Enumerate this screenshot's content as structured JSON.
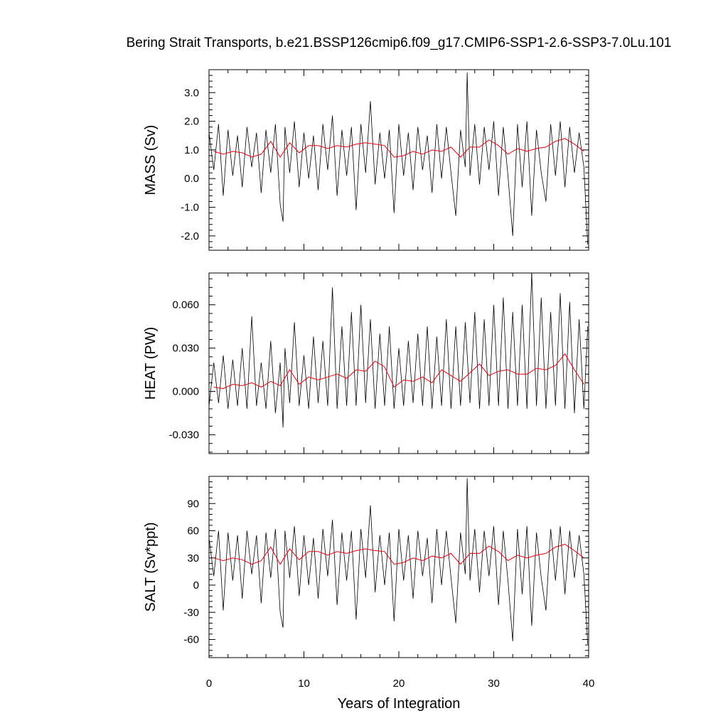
{
  "chart_data": {
    "type": "line",
    "title": "Bering Strait Transports, b.e21.BSSP126cmip6.f09_g17.CMIP6-SSP1-2.6-SSP3-7.0Lu.101",
    "xlabel": "Years of Integration",
    "xlim": [
      0,
      40
    ],
    "xticks": [
      0,
      10,
      20,
      30,
      40
    ],
    "xtick_labels": [
      "0",
      "10",
      "20",
      "30",
      "40"
    ],
    "grid": false,
    "legend": "none",
    "colors": {
      "monthly": "#000000",
      "annual": "#e8000b"
    },
    "panels": [
      {
        "id": "mass",
        "ylabel": "MASS (Sv)",
        "ylim": [
          -2.5,
          3.8
        ],
        "yticks": [
          -2.0,
          -1.0,
          0.0,
          1.0,
          2.0,
          3.0
        ],
        "ytick_labels": [
          "-2.0",
          "-1.0",
          "0.0",
          "1.0",
          "2.0",
          "3.0"
        ],
        "series": [
          {
            "kind": "monthly",
            "x": [
              0.0,
              0.5,
              1.0,
              1.5,
              2.0,
              2.5,
              3.0,
              3.5,
              4.0,
              4.5,
              5.0,
              5.5,
              6.0,
              6.5,
              7.0,
              7.5,
              7.8,
              8.0,
              8.5,
              9.0,
              9.5,
              10.0,
              10.5,
              11.0,
              11.5,
              12.0,
              12.5,
              13.0,
              13.5,
              14.0,
              14.5,
              15.0,
              15.5,
              16.0,
              16.5,
              17.0,
              17.5,
              18.0,
              18.5,
              19.0,
              19.5,
              20.0,
              20.5,
              21.0,
              21.5,
              22.0,
              22.5,
              23.0,
              23.5,
              24.0,
              24.5,
              25.0,
              25.5,
              26.0,
              26.5,
              27.0,
              27.2,
              27.5,
              28.0,
              28.5,
              29.0,
              29.5,
              30.0,
              30.5,
              31.0,
              31.5,
              32.0,
              32.5,
              33.0,
              33.5,
              34.0,
              34.5,
              35.0,
              35.5,
              36.0,
              36.5,
              37.0,
              37.5,
              38.0,
              38.5,
              39.0,
              39.5,
              39.9
            ],
            "y": [
              1.6,
              0.3,
              1.9,
              -0.6,
              1.7,
              0.1,
              1.5,
              -0.3,
              1.8,
              0.4,
              1.6,
              -0.5,
              1.7,
              0.2,
              1.9,
              -0.9,
              -1.5,
              1.8,
              0.2,
              2.0,
              -0.3,
              1.6,
              0.0,
              1.5,
              -0.4,
              1.9,
              0.3,
              2.2,
              -0.6,
              1.7,
              0.1,
              1.8,
              -1.1,
              1.9,
              0.2,
              2.7,
              -0.2,
              1.6,
              0.0,
              1.7,
              -1.2,
              1.9,
              0.1,
              1.6,
              -0.4,
              1.8,
              0.3,
              1.5,
              -0.5,
              1.9,
              0.0,
              1.8,
              0.2,
              -1.3,
              1.7,
              0.4,
              3.7,
              0.1,
              1.9,
              -0.2,
              1.8,
              0.3,
              2.0,
              -0.6,
              1.8,
              0.1,
              -2.0,
              1.9,
              -0.3,
              2.0,
              -1.3,
              1.7,
              0.2,
              -0.8,
              1.9,
              0.1,
              2.0,
              -0.3,
              1.8,
              0.2,
              1.6,
              0.4,
              -2.3
            ]
          },
          {
            "kind": "annual",
            "x": [
              0.5,
              1.5,
              2.5,
              3.5,
              4.5,
              5.5,
              6.5,
              7.5,
              8.5,
              9.5,
              10.5,
              11.5,
              12.5,
              13.5,
              14.5,
              15.5,
              16.5,
              17.5,
              18.5,
              19.5,
              20.5,
              21.5,
              22.5,
              23.5,
              24.5,
              25.5,
              26.5,
              27.5,
              28.5,
              29.5,
              30.5,
              31.5,
              32.5,
              33.5,
              34.5,
              35.5,
              36.5,
              37.5,
              38.5,
              39.5
            ],
            "y": [
              0.95,
              0.85,
              0.95,
              0.9,
              0.75,
              0.85,
              1.3,
              0.75,
              1.25,
              0.9,
              1.15,
              1.15,
              1.05,
              1.15,
              1.1,
              1.2,
              1.25,
              1.2,
              1.15,
              0.75,
              0.8,
              0.95,
              0.85,
              1.0,
              0.95,
              1.1,
              0.75,
              1.1,
              1.1,
              1.35,
              1.15,
              0.85,
              1.05,
              0.95,
              1.05,
              1.1,
              1.3,
              1.4,
              1.2,
              0.95
            ]
          }
        ]
      },
      {
        "id": "heat",
        "ylabel": "HEAT (PW)",
        "ylim": [
          -0.043,
          0.082
        ],
        "yticks": [
          -0.03,
          0.0,
          0.03,
          0.06
        ],
        "ytick_labels": [
          "-0.030",
          "0.000",
          "0.030",
          "0.060"
        ],
        "series": [
          {
            "kind": "monthly",
            "x": [
              0.0,
              0.5,
              1.0,
              1.5,
              2.0,
              2.5,
              3.0,
              3.5,
              4.0,
              4.5,
              5.0,
              5.5,
              6.0,
              6.5,
              7.0,
              7.5,
              7.8,
              8.0,
              8.5,
              9.0,
              9.5,
              10.0,
              10.5,
              11.0,
              11.5,
              12.0,
              12.5,
              13.0,
              13.5,
              14.0,
              14.5,
              15.0,
              15.5,
              16.0,
              16.5,
              17.0,
              17.5,
              18.0,
              18.5,
              19.0,
              19.5,
              20.0,
              20.5,
              21.0,
              21.5,
              22.0,
              22.5,
              23.0,
              23.5,
              24.0,
              24.5,
              25.0,
              25.5,
              26.0,
              26.5,
              27.0,
              27.5,
              28.0,
              28.5,
              29.0,
              29.5,
              30.0,
              30.5,
              31.0,
              31.5,
              32.0,
              32.5,
              33.0,
              33.5,
              34.0,
              34.5,
              35.0,
              35.5,
              36.0,
              36.5,
              37.0,
              37.5,
              38.0,
              38.5,
              39.0,
              39.5,
              39.9
            ],
            "y": [
              -0.01,
              0.02,
              -0.008,
              0.025,
              -0.012,
              0.022,
              -0.01,
              0.03,
              -0.012,
              0.052,
              -0.01,
              0.02,
              -0.012,
              0.035,
              -0.015,
              0.02,
              -0.025,
              0.03,
              -0.008,
              0.048,
              -0.01,
              0.025,
              -0.012,
              0.038,
              -0.008,
              0.035,
              -0.01,
              0.072,
              -0.012,
              0.045,
              -0.01,
              0.055,
              -0.01,
              0.06,
              -0.008,
              0.05,
              -0.012,
              0.04,
              -0.01,
              0.045,
              -0.012,
              0.03,
              -0.01,
              0.035,
              -0.008,
              0.04,
              -0.01,
              0.045,
              -0.012,
              0.038,
              -0.01,
              0.05,
              -0.012,
              0.045,
              -0.01,
              0.048,
              -0.008,
              0.055,
              -0.012,
              0.05,
              -0.01,
              0.06,
              -0.01,
              0.065,
              -0.012,
              0.055,
              -0.01,
              0.06,
              -0.012,
              0.082,
              -0.01,
              0.065,
              -0.012,
              0.055,
              -0.01,
              0.068,
              -0.012,
              0.062,
              -0.015,
              0.05,
              -0.012,
              0.045
            ]
          },
          {
            "kind": "annual",
            "x": [
              0.5,
              1.5,
              2.5,
              3.5,
              4.5,
              5.5,
              6.5,
              7.5,
              8.5,
              9.5,
              10.5,
              11.5,
              12.5,
              13.5,
              14.5,
              15.5,
              16.5,
              17.5,
              18.5,
              19.5,
              20.5,
              21.5,
              22.5,
              23.5,
              24.5,
              25.5,
              26.5,
              27.5,
              28.5,
              29.5,
              30.5,
              31.5,
              32.5,
              33.5,
              34.5,
              35.5,
              36.5,
              37.5,
              38.5,
              39.5
            ],
            "y": [
              0.003,
              0.002,
              0.005,
              0.004,
              0.006,
              0.003,
              0.007,
              0.004,
              0.015,
              0.005,
              0.01,
              0.008,
              0.01,
              0.012,
              0.009,
              0.015,
              0.014,
              0.021,
              0.017,
              0.003,
              0.008,
              0.007,
              0.01,
              0.006,
              0.015,
              0.011,
              0.007,
              0.013,
              0.019,
              0.011,
              0.014,
              0.015,
              0.012,
              0.012,
              0.016,
              0.015,
              0.018,
              0.026,
              0.015,
              0.005
            ]
          }
        ]
      },
      {
        "id": "salt",
        "ylabel": "SALT (Sv*ppt)",
        "ylim": [
          -80,
          120
        ],
        "yticks": [
          -60,
          -30,
          0,
          30,
          60,
          90
        ],
        "ytick_labels": [
          "-60",
          "-30",
          "0",
          "30",
          "60",
          "90"
        ],
        "series": [
          {
            "kind": "monthly",
            "x": [
              0.0,
              0.5,
              1.0,
              1.5,
              2.0,
              2.5,
              3.0,
              3.5,
              4.0,
              4.5,
              5.0,
              5.5,
              6.0,
              6.5,
              7.0,
              7.5,
              7.8,
              8.0,
              8.5,
              9.0,
              9.5,
              10.0,
              10.5,
              11.0,
              11.5,
              12.0,
              12.5,
              13.0,
              13.5,
              14.0,
              14.5,
              15.0,
              15.5,
              16.0,
              16.5,
              17.0,
              17.5,
              18.0,
              18.5,
              19.0,
              19.5,
              20.0,
              20.5,
              21.0,
              21.5,
              22.0,
              22.5,
              23.0,
              23.5,
              24.0,
              24.5,
              25.0,
              25.5,
              26.0,
              26.5,
              27.0,
              27.2,
              27.5,
              28.0,
              28.5,
              29.0,
              29.5,
              30.0,
              30.5,
              31.0,
              31.5,
              32.0,
              32.5,
              33.0,
              33.5,
              34.0,
              34.5,
              35.0,
              35.5,
              36.0,
              36.5,
              37.0,
              37.5,
              38.0,
              38.5,
              39.0,
              39.5,
              39.9
            ],
            "y": [
              52,
              10,
              60,
              -28,
              58,
              5,
              55,
              -15,
              60,
              12,
              55,
              -20,
              58,
              8,
              62,
              -30,
              -47,
              60,
              8,
              65,
              -12,
              55,
              0,
              52,
              -15,
              62,
              10,
              72,
              -22,
              58,
              5,
              60,
              -38,
              62,
              8,
              88,
              -8,
              55,
              0,
              58,
              -40,
              62,
              5,
              55,
              -15,
              60,
              10,
              52,
              -20,
              62,
              0,
              60,
              8,
              -42,
              58,
              12,
              118,
              5,
              62,
              -8,
              60,
              10,
              65,
              -22,
              60,
              5,
              -62,
              62,
              -10,
              65,
              -45,
              58,
              8,
              -28,
              62,
              5,
              65,
              -10,
              60,
              8,
              55,
              12,
              -65
            ]
          },
          {
            "kind": "annual",
            "x": [
              0.5,
              1.5,
              2.5,
              3.5,
              4.5,
              5.5,
              6.5,
              7.5,
              8.5,
              9.5,
              10.5,
              11.5,
              12.5,
              13.5,
              14.5,
              15.5,
              16.5,
              17.5,
              18.5,
              19.5,
              20.5,
              21.5,
              22.5,
              23.5,
              24.5,
              25.5,
              26.5,
              27.5,
              28.5,
              29.5,
              30.5,
              31.5,
              32.5,
              33.5,
              34.5,
              35.5,
              36.5,
              37.5,
              38.5,
              39.5
            ],
            "y": [
              30,
              27,
              30,
              28,
              23,
              27,
              42,
              23,
              40,
              28,
              37,
              37,
              33,
              37,
              35,
              38,
              40,
              38,
              37,
              23,
              25,
              30,
              27,
              32,
              30,
              35,
              23,
              35,
              35,
              43,
              37,
              27,
              33,
              30,
              33,
              35,
              42,
              45,
              38,
              30
            ]
          }
        ]
      }
    ]
  }
}
